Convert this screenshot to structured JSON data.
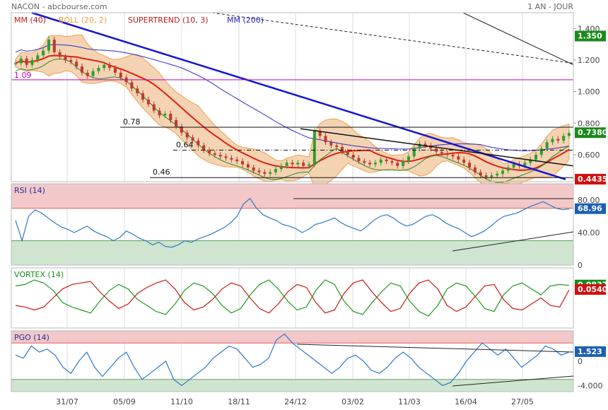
{
  "header": {
    "symbol": "NACON - abcbourse.com",
    "period": "1 AN - JOUR"
  },
  "colors": {
    "price_up": "#2f9e2f",
    "price_down": "#c0392b",
    "boll": "#f0a050",
    "mm40": "#8b1a3a",
    "mm200": "#2a2ad0",
    "supertrend": "#228b22",
    "trend_blue": "#1515d0",
    "magenta": "#c000c0",
    "red_line": "#e02010",
    "zone_red": "#f2c8c8",
    "zone_green": "#cfe5cf",
    "line_blue": "#2f77c8",
    "label_green": "#1a8a1a",
    "label_red": "#d01010",
    "label_blue": "#1a5fb4"
  },
  "chart_data": [
    {
      "name": "price",
      "type": "candlestick",
      "legend": [
        {
          "text": "MM (40)",
          "color": "#c01818"
        },
        {
          "text": "BOLL (20, 2)",
          "color": "#e8a040"
        },
        {
          "text": "SUPERTREND (10, 3)",
          "color": "#c01818"
        },
        {
          "text": "MM (200)",
          "color": "#2020c0"
        }
      ],
      "y_ticks": [
        "1.400",
        "1.200",
        "1.000",
        "0.800",
        "0.600"
      ],
      "y_tick_values": [
        1.4,
        1.2,
        1.0,
        0.8,
        0.6
      ],
      "ylim": [
        0.43,
        1.5
      ],
      "levels": [
        {
          "label": "1.09",
          "value": 1.075
        },
        {
          "label": "0.78",
          "value": 0.775
        },
        {
          "label": "0.64",
          "value": 0.63
        },
        {
          "label": "0.46",
          "value": 0.456
        }
      ],
      "tags": [
        {
          "text": "1.350",
          "value": 1.35,
          "color": "#1a8a1a"
        },
        {
          "text": "0.7380",
          "value": 0.738,
          "color": "#1a8a1a"
        },
        {
          "text": "0.4435",
          "value": 0.4435,
          "color": "#d01010"
        }
      ],
      "closes": [
        1.18,
        1.21,
        1.17,
        1.2,
        1.23,
        1.26,
        1.33,
        1.25,
        1.22,
        1.2,
        1.19,
        1.16,
        1.12,
        1.1,
        1.13,
        1.15,
        1.17,
        1.15,
        1.12,
        1.09,
        1.06,
        1.02,
        0.99,
        0.95,
        0.92,
        0.88,
        0.85,
        0.86,
        0.82,
        0.78,
        0.74,
        0.71,
        0.69,
        0.66,
        0.63,
        0.61,
        0.6,
        0.59,
        0.58,
        0.57,
        0.56,
        0.54,
        0.52,
        0.5,
        0.49,
        0.48,
        0.49,
        0.51,
        0.53,
        0.55,
        0.54,
        0.55,
        0.53,
        0.54,
        0.75,
        0.72,
        0.68,
        0.66,
        0.65,
        0.62,
        0.6,
        0.58,
        0.56,
        0.55,
        0.54,
        0.55,
        0.57,
        0.56,
        0.55,
        0.53,
        0.56,
        0.59,
        0.64,
        0.67,
        0.66,
        0.64,
        0.62,
        0.61,
        0.6,
        0.59,
        0.57,
        0.55,
        0.52,
        0.49,
        0.47,
        0.46,
        0.47,
        0.48,
        0.5,
        0.52,
        0.54,
        0.53,
        0.55,
        0.57,
        0.6,
        0.64,
        0.68,
        0.7,
        0.69,
        0.72,
        0.738
      ]
    },
    {
      "name": "rsi",
      "title": "RSI (14)",
      "type": "line",
      "y_ticks": [
        "80.00",
        "40.00",
        "0"
      ],
      "y_tick_values": [
        80,
        40,
        0
      ],
      "ylim": [
        0,
        100
      ],
      "zones": [
        70,
        30
      ],
      "tag": {
        "text": "68.96",
        "value": 68.96,
        "color": "#1a5fb4"
      },
      "values": [
        55,
        30,
        60,
        68,
        64,
        58,
        52,
        47,
        44,
        40,
        44,
        48,
        42,
        38,
        35,
        30,
        34,
        42,
        38,
        33,
        30,
        25,
        28,
        23,
        22,
        25,
        30,
        28,
        32,
        35,
        38,
        42,
        46,
        52,
        60,
        75,
        82,
        70,
        62,
        58,
        55,
        50,
        48,
        45,
        40,
        44,
        50,
        52,
        55,
        58,
        52,
        48,
        45,
        42,
        48,
        55,
        60,
        62,
        58,
        52,
        48,
        50,
        55,
        60,
        62,
        58,
        52,
        48,
        45,
        40,
        35,
        38,
        42,
        48,
        55,
        60,
        62,
        64,
        68,
        72,
        75,
        78,
        74,
        70,
        68,
        69
      ]
    },
    {
      "name": "vortex",
      "title": "VORTEX (14)",
      "type": "line",
      "y_ticks": [
        "0.0400"
      ],
      "y_tick_values": [
        0.04
      ],
      "ylim": [
        -0.2,
        0.2
      ],
      "tags": [
        {
          "text": "0.0837",
          "value": 0.0837,
          "color": "#1a8a1a"
        },
        {
          "text": "0.0540",
          "value": 0.054,
          "color": "#d01010"
        }
      ],
      "series": [
        {
          "name": "VI+",
          "color": "#1f9a1f",
          "values": [
            0.08,
            0.09,
            0.12,
            0.1,
            0.05,
            -0.03,
            -0.06,
            -0.08,
            -0.1,
            -0.02,
            0.05,
            0.09,
            0.06,
            -0.01,
            -0.05,
            -0.09,
            -0.11,
            -0.04,
            0.05,
            0.1,
            0.08,
            0.03,
            -0.05,
            -0.1,
            -0.07,
            0.02,
            0.09,
            0.12,
            0.06,
            -0.02,
            -0.08,
            -0.06,
            0.05,
            0.12,
            0.09,
            -0.02,
            -0.09,
            -0.11,
            -0.03,
            0.04,
            0.1,
            0.08,
            -0.02,
            -0.09,
            -0.12,
            -0.05,
            0.06,
            0.1,
            0.08,
            0.01,
            -0.07,
            -0.09,
            0.02,
            0.08,
            0.1,
            0.06,
            0.02,
            0.08,
            0.09,
            0.0837
          ]
        },
        {
          "name": "VI-",
          "color": "#c81818",
          "values": [
            -0.05,
            -0.06,
            -0.08,
            -0.06,
            0.0,
            0.06,
            0.09,
            0.1,
            0.11,
            0.04,
            -0.02,
            -0.07,
            -0.04,
            0.03,
            0.07,
            0.1,
            0.12,
            0.06,
            -0.03,
            -0.08,
            -0.06,
            -0.01,
            0.06,
            0.1,
            0.08,
            0.0,
            -0.07,
            -0.1,
            -0.04,
            0.04,
            0.09,
            0.07,
            -0.03,
            -0.1,
            -0.08,
            0.03,
            0.1,
            0.12,
            0.04,
            -0.03,
            -0.09,
            -0.07,
            0.03,
            0.1,
            0.12,
            0.06,
            -0.05,
            -0.09,
            -0.06,
            0.01,
            0.08,
            0.09,
            -0.01,
            -0.07,
            -0.08,
            -0.04,
            0.0,
            -0.05,
            -0.06,
            0.054
          ]
        }
      ]
    },
    {
      "name": "pgo",
      "title": "PGO (14)",
      "type": "line",
      "y_ticks": [
        "0",
        "-4.000"
      ],
      "y_tick_values": [
        0,
        -4
      ],
      "ylim": [
        -5,
        5
      ],
      "zones": [
        3,
        -3
      ],
      "tag": {
        "text": "1.523",
        "value": 1.523,
        "color": "#1a5fb4"
      },
      "values": [
        1,
        0.5,
        2.5,
        1.5,
        2,
        1,
        -1,
        -2,
        0,
        1.5,
        -1,
        -2.5,
        -1,
        0.5,
        1.5,
        -1,
        -3,
        -2,
        -1,
        0,
        -3,
        -4,
        -3,
        -2,
        -1,
        0.5,
        1.5,
        2.5,
        2,
        0.5,
        -1,
        -0.5,
        0.5,
        3.5,
        4.5,
        3,
        2,
        1,
        0,
        -1,
        -2,
        -1,
        0.5,
        1,
        0,
        -1.5,
        -2,
        -1,
        0.5,
        1.5,
        0.5,
        -1,
        -2,
        -3,
        -4,
        -3.5,
        -2,
        0,
        1.5,
        3,
        2,
        1,
        2,
        0.5,
        -1,
        0,
        1,
        2.5,
        2,
        1,
        1.523
      ]
    }
  ],
  "x_axis": {
    "labels": [
      "31/07",
      "05/09",
      "11/10",
      "18/11",
      "24/12",
      "03/02",
      "11/03",
      "16/04",
      "27/05"
    ]
  }
}
